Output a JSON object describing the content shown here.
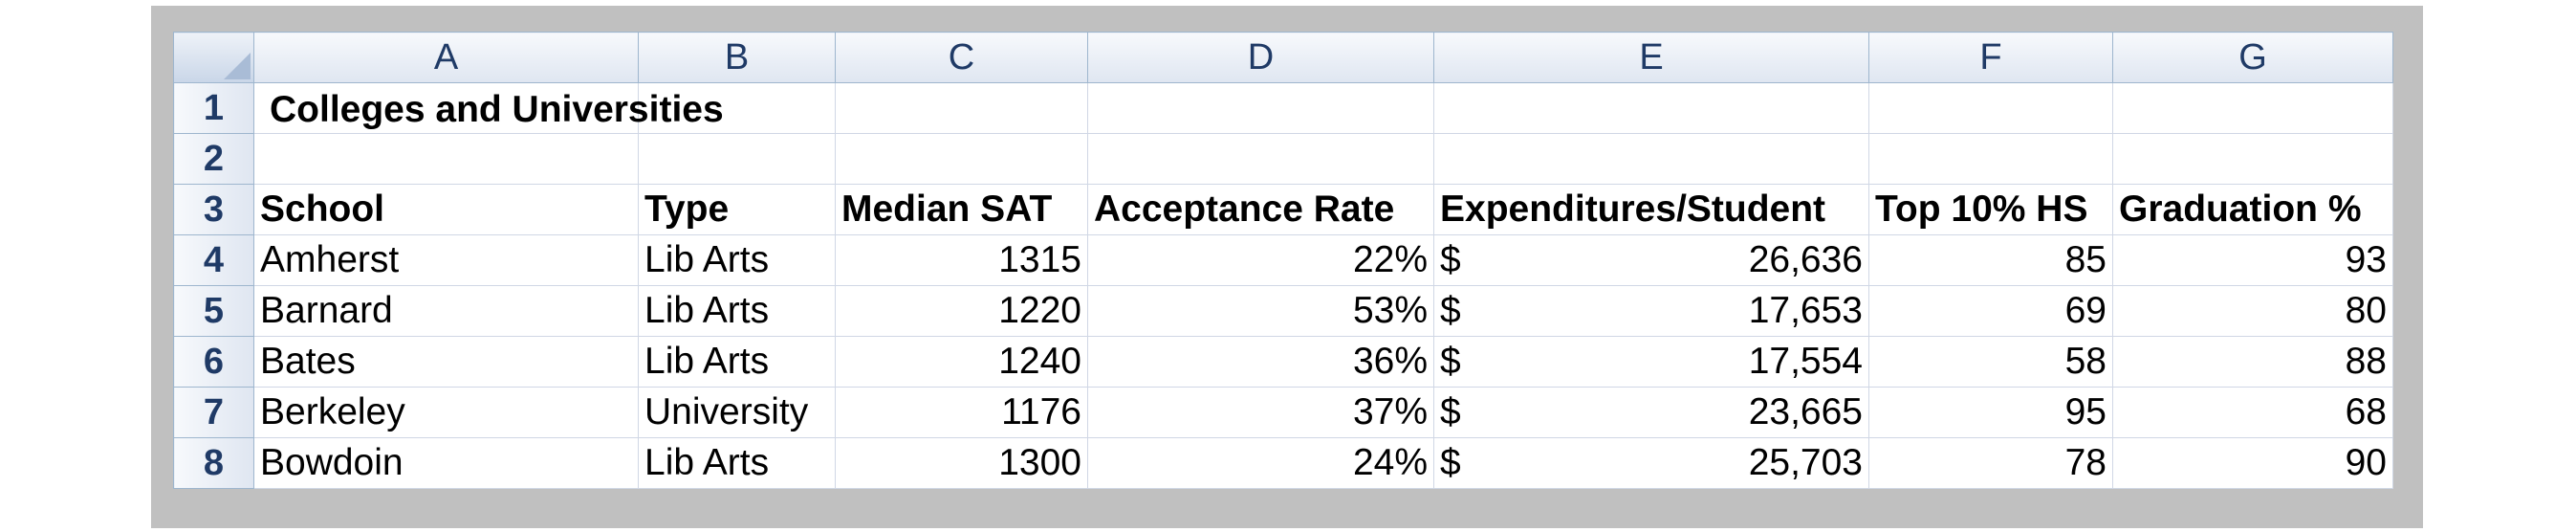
{
  "columns": [
    "A",
    "B",
    "C",
    "D",
    "E",
    "F",
    "G"
  ],
  "rows_index": [
    "1",
    "2",
    "3",
    "4",
    "5",
    "6",
    "7",
    "8"
  ],
  "title": "Colleges and Universities",
  "headers": {
    "school": "School",
    "type": "Type",
    "median_sat": "Median SAT",
    "acceptance_rate": "Acceptance Rate",
    "expenditures": "Expenditures/Student",
    "top10": "Top 10% HS",
    "graduation": "Graduation %"
  },
  "currency_symbol": "$",
  "data": [
    {
      "school": "Amherst",
      "type": "Lib Arts",
      "sat": "1315",
      "accept": "22%",
      "expend": "26,636",
      "top10": "85",
      "grad": "93"
    },
    {
      "school": "Barnard",
      "type": "Lib Arts",
      "sat": "1220",
      "accept": "53%",
      "expend": "17,653",
      "top10": "69",
      "grad": "80"
    },
    {
      "school": "Bates",
      "type": "Lib Arts",
      "sat": "1240",
      "accept": "36%",
      "expend": "17,554",
      "top10": "58",
      "grad": "88"
    },
    {
      "school": "Berkeley",
      "type": "University",
      "sat": "1176",
      "accept": "37%",
      "expend": "23,665",
      "top10": "95",
      "grad": "68"
    },
    {
      "school": "Bowdoin",
      "type": "Lib Arts",
      "sat": "1300",
      "accept": "24%",
      "expend": "25,703",
      "top10": "78",
      "grad": "90"
    }
  ]
}
